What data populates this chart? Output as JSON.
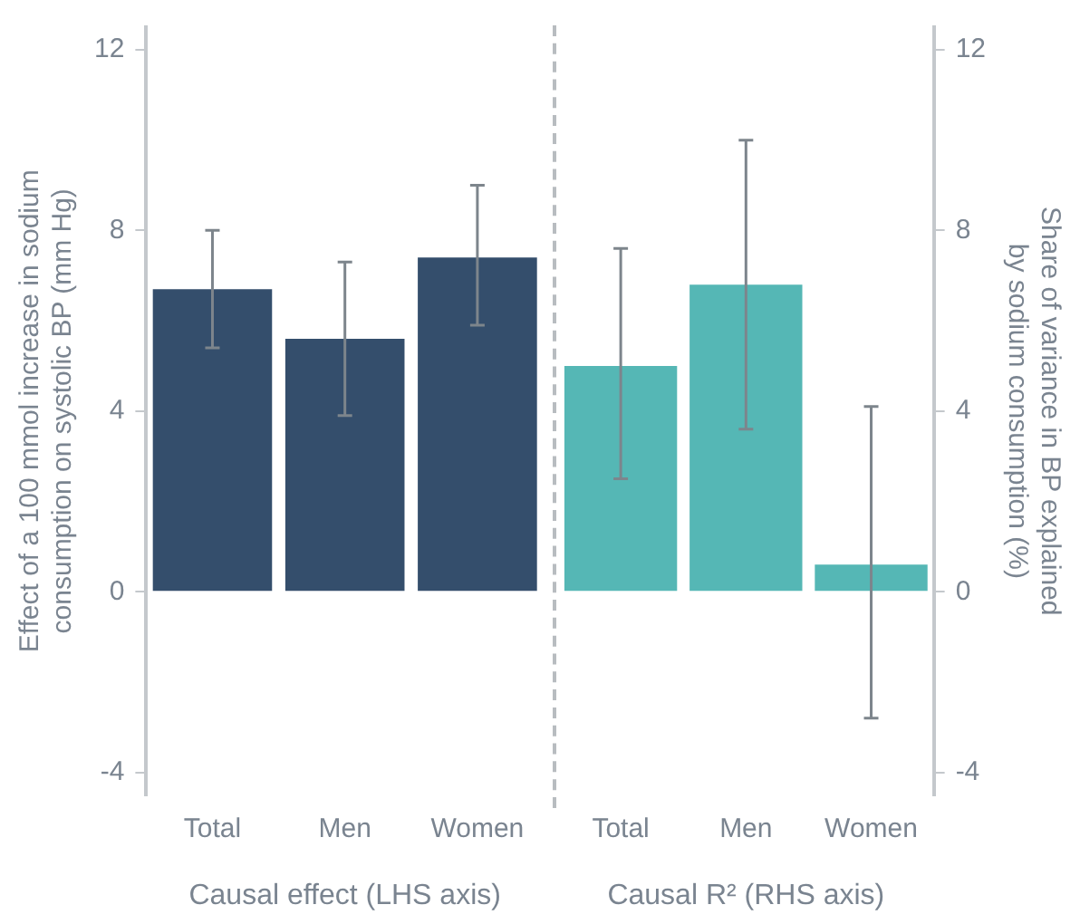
{
  "chart_data": [
    {
      "type": "bar",
      "categories": [
        "Total",
        "Men",
        "Women"
      ],
      "xlabel": "Causal effect (LHS axis)",
      "ylabel": "Effect of a 100 mmol increase in sodium consumption on systolic BP (mm Hg)",
      "ylim": [
        -4.5,
        12.5
      ],
      "yticks": [
        -4,
        0,
        4,
        8,
        12
      ],
      "grid": false,
      "legend": false,
      "series": [
        {
          "color": "#344e6c",
          "values": [
            6.7,
            5.6,
            7.4
          ],
          "errors": [
            [
              5.4,
              8.0
            ],
            [
              3.9,
              7.3
            ],
            [
              5.9,
              9.0
            ]
          ]
        }
      ]
    },
    {
      "type": "bar",
      "categories": [
        "Total",
        "Men",
        "Women"
      ],
      "xlabel": "Causal R² (RHS axis)",
      "y2label": "Share of variance in BP explained by sodium consumption (%)",
      "y2lim": [
        -4.5,
        12.5
      ],
      "y2ticks": [
        -4,
        0,
        4,
        8,
        12
      ],
      "grid": false,
      "legend": false,
      "series": [
        {
          "color": "#55b7b5",
          "axis": "y2",
          "values": [
            5.0,
            6.8,
            0.6
          ],
          "errors": [
            [
              2.5,
              7.6
            ],
            [
              3.6,
              10.0
            ],
            [
              -2.8,
              4.1
            ]
          ]
        }
      ]
    }
  ]
}
